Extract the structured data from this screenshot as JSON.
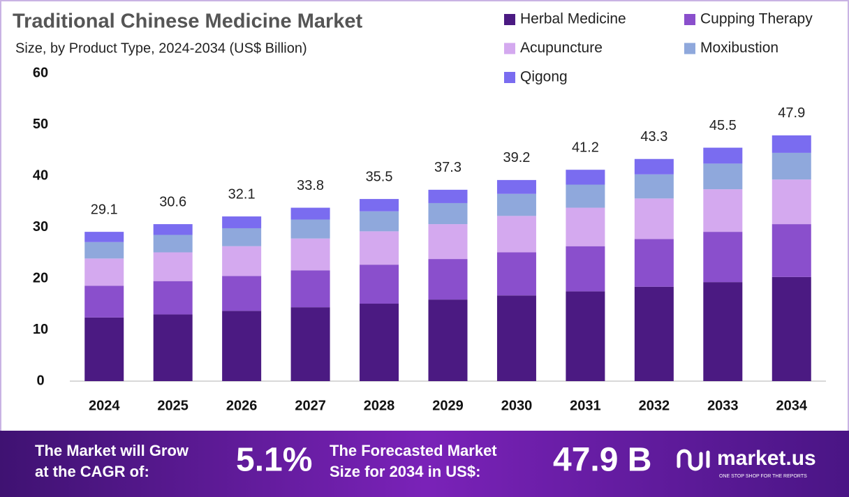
{
  "chart_data": {
    "type": "stacked-bar",
    "title": "Traditional Chinese Medicine Market",
    "subtitle": "Size, by Product Type, 2024-2034 (US$ Billion)",
    "categories": [
      "2024",
      "2025",
      "2026",
      "2027",
      "2028",
      "2029",
      "2030",
      "2031",
      "2032",
      "2033",
      "2034"
    ],
    "series": [
      {
        "name": "Herbal Medicine",
        "color": "#4b1a82",
        "values": [
          12.4,
          13.0,
          13.7,
          14.4,
          15.1,
          15.9,
          16.7,
          17.5,
          18.4,
          19.3,
          20.3
        ]
      },
      {
        "name": "Cupping Therapy",
        "color": "#8a4fcc",
        "values": [
          6.2,
          6.5,
          6.8,
          7.2,
          7.6,
          7.9,
          8.4,
          8.8,
          9.3,
          9.8,
          10.3
        ]
      },
      {
        "name": "Acupuncture",
        "color": "#d4a9ef",
        "values": [
          5.3,
          5.6,
          5.8,
          6.2,
          6.5,
          6.8,
          7.1,
          7.5,
          7.9,
          8.3,
          8.7
        ]
      },
      {
        "name": "Moxibustion",
        "color": "#8fa8dc",
        "values": [
          3.2,
          3.4,
          3.5,
          3.7,
          3.9,
          4.1,
          4.3,
          4.5,
          4.7,
          5.0,
          5.2
        ]
      },
      {
        "name": "Qigong",
        "color": "#7a6cf0",
        "values": [
          2.0,
          2.1,
          2.3,
          2.3,
          2.4,
          2.6,
          2.7,
          2.9,
          3.0,
          3.1,
          3.4
        ]
      }
    ],
    "totals": [
      29.1,
      30.6,
      32.1,
      33.8,
      35.5,
      37.3,
      39.2,
      41.2,
      43.3,
      45.5,
      47.9
    ],
    "ylim": [
      0,
      60
    ],
    "yticks": [
      0,
      10,
      20,
      30,
      40,
      50,
      60
    ],
    "grid": false
  },
  "footer": {
    "cagr_label": [
      "The Market will Grow",
      "at the CAGR of:"
    ],
    "cagr_value": "5.1%",
    "forecast_label": [
      "The Forecasted Market",
      "Size for 2034 in US$:"
    ],
    "forecast_value": "47.9 B",
    "brand": "market.us",
    "tagline": "ONE STOP SHOP FOR THE REPORTS"
  }
}
